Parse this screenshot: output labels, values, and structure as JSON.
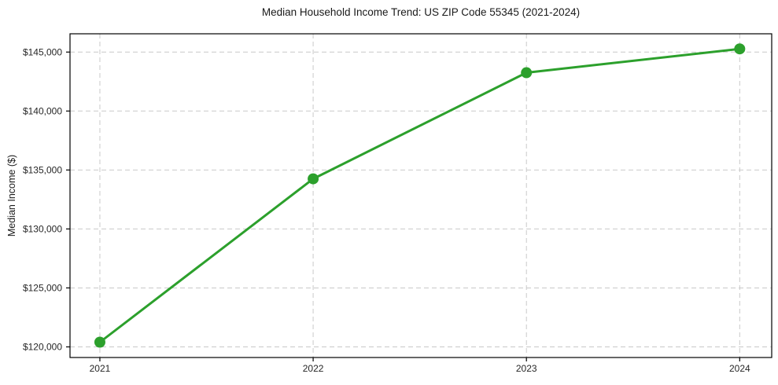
{
  "page": {
    "background": "#ffffff"
  },
  "chart_data": {
    "type": "line",
    "title": "Median Household Income Trend: US ZIP Code 55345 (2021-2024)",
    "xlabel": "",
    "ylabel": "Median Income ($)",
    "categories": [
      2021,
      2022,
      2023,
      2024
    ],
    "series": [
      {
        "name": "Median Household Income",
        "values": [
          120400,
          134250,
          143250,
          145270
        ],
        "color": "#2ca02c"
      }
    ],
    "xlim": [
      2020.86,
      2024.15
    ],
    "ylim": [
      119100,
      146550
    ],
    "yticks": [
      {
        "value": 120000,
        "label": "$120,000"
      },
      {
        "value": 125000,
        "label": "$125,000"
      },
      {
        "value": 130000,
        "label": "$130,000"
      },
      {
        "value": 135000,
        "label": "$135,000"
      },
      {
        "value": 140000,
        "label": "$140,000"
      },
      {
        "value": 145000,
        "label": "$145,000"
      }
    ],
    "xticks": [
      {
        "value": 2021,
        "label": "2021"
      },
      {
        "value": 2022,
        "label": "2022"
      },
      {
        "value": 2023,
        "label": "2023"
      },
      {
        "value": 2024,
        "label": "2024"
      }
    ],
    "grid": {
      "visible": true,
      "axes": "both",
      "style": "dashed",
      "color": "#c9c9c9"
    },
    "legend": {
      "visible": false
    },
    "marker": {
      "shape": "circle",
      "radius": 7
    },
    "line_width": 3,
    "spine_color": "#000000",
    "tick_color": "#000000",
    "tick_label_color": "#262626",
    "tick_font_size": 12,
    "title_color": "#1a1a1a"
  }
}
